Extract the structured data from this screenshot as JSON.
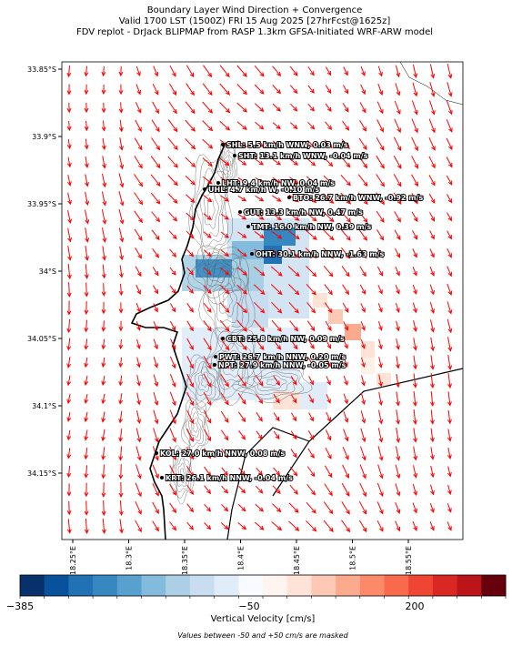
{
  "header": {
    "title_lines": [
      "Boundary Layer Wind Direction + Convergence",
      "Valid 1700 LST (1500Z) FRI 15 Aug 2025 [27hrFcst@1625z]",
      "FDV replot - DrJack BLIPMAP from RASP 1.3km GFSA-Initiated WRF-ARW model"
    ]
  },
  "map": {
    "lat_labels": [
      "33.85°S",
      "33.9°S",
      "33.95°S",
      "34°S",
      "34.05°S",
      "34.1°S",
      "34.15°S"
    ],
    "lon_labels": [
      "18.25°E",
      "18.3°E",
      "18.35°E",
      "18.4°E",
      "18.45°E",
      "18.5°E",
      "18.55°E"
    ],
    "stations": [
      "SHL: 5.5 km/h WNW, 0.03 m/s",
      "SHT: 13.1 km/h WNW, -0.04 m/s",
      "LHT: 9.4 km/h NW, 0.04 m/s",
      "UHL: 4.7 km/h W, -0.10 m/s",
      "BTO: 26.7 km/h WNW, -0.92 m/s",
      "GUT: 13.3 km/h NW, 0.47 m/s",
      "TMT: 16.0 km/h NW, 0.39 m/s",
      "OHT: 30.1 km/h NNW, -1.63 m/s",
      "CBT: 25.8 km/h NW, 0.09 m/s",
      "PWT: 26.7 km/h NNW, 0.20 m/s",
      "NPT: 27.9 km/h NNW, -0.05 m/s",
      "KOL: 27.0 km/h NNW, 0.08 m/s",
      "KRT: 26.1 km/h NNW, -0.04 m/s"
    ]
  },
  "colorbar": {
    "colors": [
      "#08306b",
      "#08519c",
      "#2171b5",
      "#3787c0",
      "#58a1cf",
      "#82bbdb",
      "#abd0e6",
      "#c8ddf0",
      "#e0ecf8",
      "#f7fbff",
      "#fff5f0",
      "#fee3d6",
      "#fdc9b4",
      "#fcaa8e",
      "#fc8a6a",
      "#f96a4d",
      "#ef4533",
      "#d92723",
      "#bb151a",
      "#67000d"
    ],
    "tick_labels": [
      "−385",
      "−50",
      "200"
    ],
    "label": "Vertical Velocity [cm/s]"
  },
  "note": "Values between -50 and +50 cm/s are masked"
}
